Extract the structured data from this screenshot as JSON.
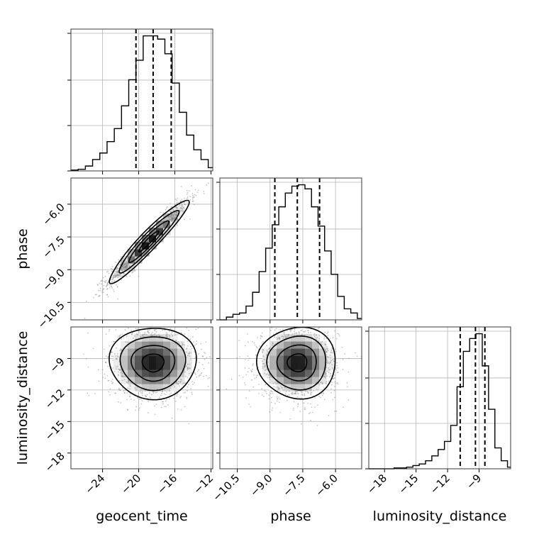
{
  "chart_data": {
    "type": "corner",
    "parameters": [
      "geocent_time",
      "phase",
      "luminosity_distance"
    ],
    "axis_ticks": {
      "geocent_time": {
        "range": [
          -27.5,
          -11.8
        ],
        "ticks": [
          -24,
          -20,
          -16,
          -12
        ],
        "labels": [
          "−24",
          "−20",
          "−16",
          "−12"
        ]
      },
      "phase": {
        "range": [
          -11.3,
          -4.8
        ],
        "ticks": [
          -10.5,
          -9.0,
          -7.5,
          -6.0
        ],
        "labels": [
          "−10.5",
          "−9.0",
          "−7.5",
          "−6.0"
        ]
      },
      "luminosity_distance": {
        "range": [
          -19.5,
          -6.0
        ],
        "ticks": [
          -18,
          -15,
          -12,
          -9
        ],
        "labels": [
          "−18",
          "−15",
          "−12",
          "−9"
        ]
      }
    },
    "histograms": [
      {
        "parameter": "geocent_time",
        "bin_edges": [
          -27.5,
          -26.7,
          -25.9,
          -25.1,
          -24.3,
          -23.5,
          -22.7,
          -21.9,
          -21.1,
          -20.3,
          -19.5,
          -18.7,
          -17.9,
          -17.1,
          -16.3,
          -15.5,
          -14.7,
          -13.9,
          -13.1,
          -12.3,
          -11.8
        ],
        "counts": [
          0.5,
          1,
          3,
          7,
          11,
          18,
          26,
          40,
          56,
          68,
          83,
          83,
          81,
          72,
          54,
          36,
          22,
          13,
          7,
          2
        ],
        "quantiles": [
          -20.3,
          -18.4,
          -16.4
        ]
      },
      {
        "parameter": "phase",
        "bin_edges": [
          -11.3,
          -11.0,
          -10.7,
          -10.4,
          -10.1,
          -9.8,
          -9.5,
          -9.2,
          -8.9,
          -8.6,
          -8.3,
          -8.0,
          -7.7,
          -7.4,
          -7.1,
          -6.8,
          -6.5,
          -6.2,
          -5.9,
          -5.6,
          -5.3,
          -5.0,
          -4.8
        ],
        "counts": [
          0,
          2,
          4,
          5,
          10,
          20,
          35,
          52,
          69,
          82,
          92,
          97,
          98,
          95,
          82,
          68,
          50,
          33,
          17,
          8,
          5,
          1
        ],
        "quantiles": [
          -8.78,
          -7.75,
          -6.73
        ]
      },
      {
        "parameter": "luminosity_distance",
        "bin_edges": [
          -19.5,
          -18.9,
          -18.3,
          -17.7,
          -17.1,
          -16.5,
          -15.9,
          -15.3,
          -14.7,
          -14.1,
          -13.5,
          -12.9,
          -12.3,
          -11.7,
          -11.1,
          -10.5,
          -9.9,
          -9.3,
          -8.7,
          -8.1,
          -7.5,
          -6.9,
          -6.3,
          -6.0
        ],
        "counts": [
          0,
          0,
          0,
          0,
          0.5,
          0.5,
          1,
          2,
          3,
          5,
          8,
          12,
          17,
          27,
          51,
          73,
          81,
          84,
          64,
          37,
          13,
          5,
          1
        ],
        "quantiles": [
          -10.8,
          -9.35,
          -8.45
        ]
      }
    ],
    "scatter_2d": [
      {
        "x_param": "geocent_time",
        "y_param": "phase",
        "correlation": 0.95,
        "center": [
          -18.9,
          -7.7
        ],
        "x_sd": 2.2,
        "y_sd": 0.95
      },
      {
        "x_param": "geocent_time",
        "y_param": "luminosity_distance",
        "correlation": 0.0,
        "center": [
          -18.4,
          -9.4
        ],
        "x_sd": 2.4,
        "y_sd": 1.7
      },
      {
        "x_param": "phase",
        "y_param": "luminosity_distance",
        "correlation": 0.0,
        "center": [
          -7.75,
          -9.4
        ],
        "x_sd": 0.9,
        "y_sd": 1.7
      }
    ],
    "grid": true
  }
}
